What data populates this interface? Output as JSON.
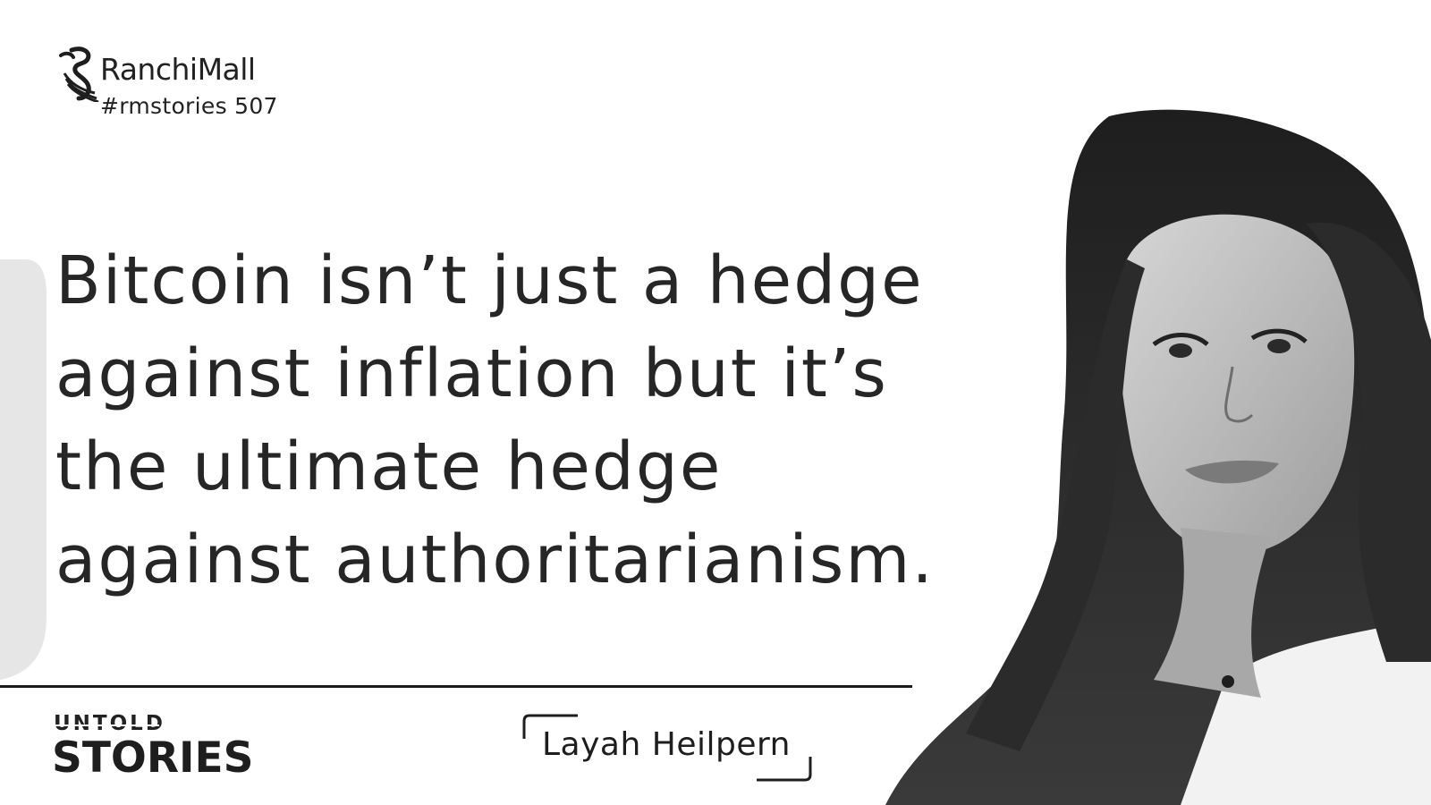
{
  "brand": {
    "name": "RanchiMall",
    "tag": "#rmstories 507",
    "logo_icon": "seahorse-logo-icon"
  },
  "quote": {
    "lines": [
      "Bitcoin isn’t just a hedge",
      "against inflation but it’s",
      "the ultimate hedge",
      "against authoritarianism."
    ]
  },
  "series": {
    "top": "UNTOLD",
    "bottom": "STORIES"
  },
  "author": {
    "name": "Layah Heilpern"
  },
  "colors": {
    "text": "#262626",
    "background": "#ffffff",
    "left_accent": "#e6e6e6"
  }
}
